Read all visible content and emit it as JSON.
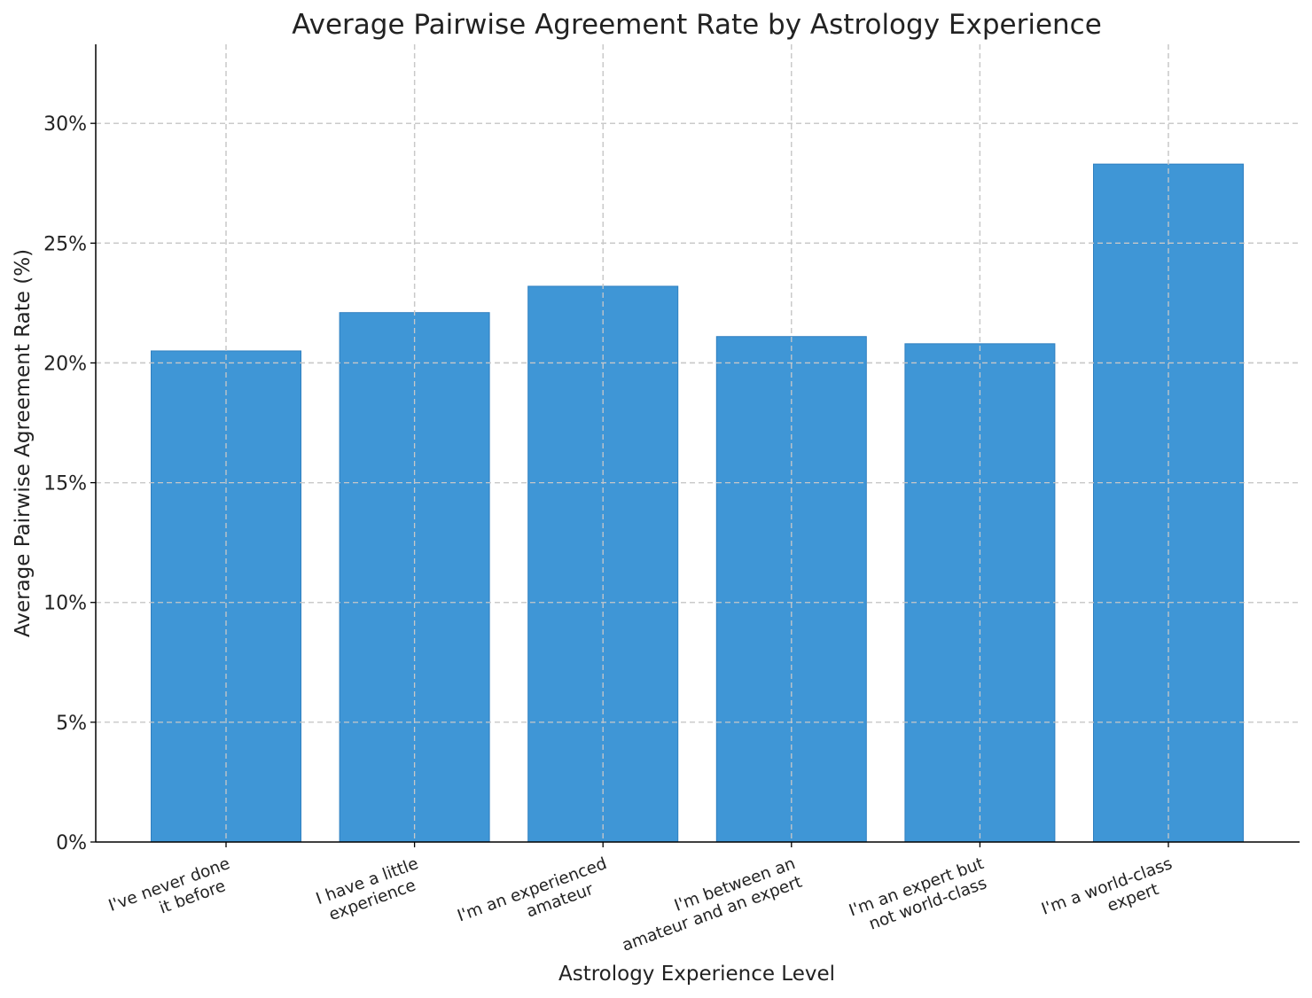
{
  "chart_data": {
    "type": "bar",
    "title": "Average Pairwise Agreement Rate by Astrology Experience",
    "xlabel": "Astrology Experience Level",
    "ylabel": "Average Pairwise Agreement Rate (%)",
    "categories": [
      [
        "I've never done",
        "it before"
      ],
      [
        "I have a little",
        "experience"
      ],
      [
        "I'm an experienced",
        "amateur"
      ],
      [
        "I'm between an",
        "amateur and an expert"
      ],
      [
        "I'm an expert but",
        "not world-class"
      ],
      [
        "I'm a world-class",
        "expert"
      ]
    ],
    "values": [
      20.5,
      22.1,
      23.2,
      21.1,
      20.8,
      28.3
    ],
    "ylim": [
      0,
      33.3
    ],
    "yticks": [
      0,
      5,
      10,
      15,
      20,
      25,
      30
    ],
    "ytick_labels": [
      "0%",
      "5%",
      "10%",
      "15%",
      "20%",
      "25%",
      "30%"
    ],
    "grid": true,
    "bar_color": "#3f96d6",
    "grid_color": "#c8c8c8"
  }
}
